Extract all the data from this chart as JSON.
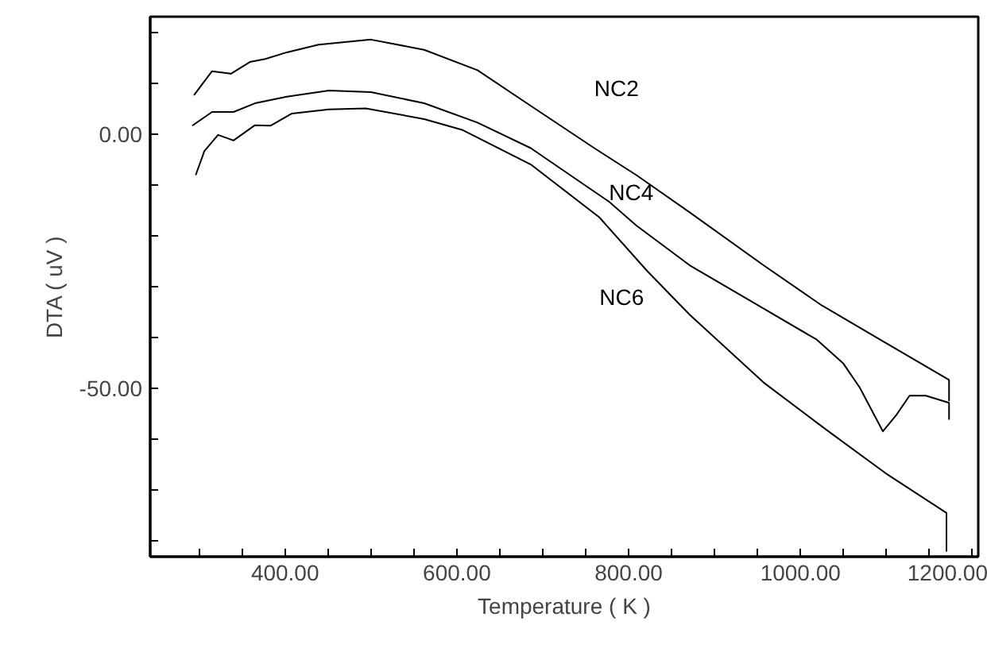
{
  "chart_data": {
    "type": "line",
    "xlabel": "Temperature ( K )",
    "ylabel": "DTA ( uV )",
    "xlim": [
      243,
      1207
    ],
    "ylim": [
      -83,
      23
    ],
    "xticks": [
      {
        "value": 300,
        "label": null
      },
      {
        "value": 350,
        "label": null
      },
      {
        "value": 400,
        "label": "400.00"
      },
      {
        "value": 450,
        "label": null
      },
      {
        "value": 500,
        "label": null
      },
      {
        "value": 550,
        "label": null
      },
      {
        "value": 600,
        "label": "600.00"
      },
      {
        "value": 650,
        "label": null
      },
      {
        "value": 700,
        "label": null
      },
      {
        "value": 750,
        "label": null
      },
      {
        "value": 800,
        "label": "800.00"
      },
      {
        "value": 850,
        "label": null
      },
      {
        "value": 900,
        "label": null
      },
      {
        "value": 950,
        "label": null
      },
      {
        "value": 1000,
        "label": "1000.00"
      },
      {
        "value": 1050,
        "label": null
      },
      {
        "value": 1100,
        "label": null
      },
      {
        "value": 1150,
        "label": null
      },
      {
        "value": 1200,
        "label": "1200.00"
      }
    ],
    "yticks": [
      {
        "value": -80,
        "label": null
      },
      {
        "value": -70,
        "label": null
      },
      {
        "value": -60,
        "label": null
      },
      {
        "value": -50,
        "label": "-50.00"
      },
      {
        "value": -40,
        "label": null
      },
      {
        "value": -30,
        "label": null
      },
      {
        "value": -20,
        "label": null
      },
      {
        "value": -10,
        "label": null
      },
      {
        "value": 0,
        "label": "0.00"
      },
      {
        "value": 10,
        "label": null
      },
      {
        "value": 20,
        "label": null
      }
    ],
    "grid": false,
    "marker": "none",
    "line_style": "solid",
    "series": [
      {
        "name": "NC2",
        "color": "#000000",
        "x": [
          294,
          315,
          337,
          359,
          377,
          402,
          439,
          500,
          562,
          624,
          686,
          760,
          809,
          871,
          957,
          1025,
          1099,
          1173,
          1173
        ],
        "values": [
          7.6,
          12.3,
          11.8,
          14.1,
          14.7,
          16,
          17.5,
          18.5,
          16.5,
          12.5,
          5.5,
          -2.8,
          -8.1,
          -15.4,
          -25.8,
          -33.7,
          -41,
          -48.3,
          -52.5
        ]
      },
      {
        "name": "NC4",
        "color": "#000000",
        "x": [
          292,
          315,
          340,
          365,
          402,
          451,
          500,
          562,
          624,
          686,
          777,
          809,
          871,
          945,
          1019,
          1050,
          1069,
          1096,
          1112,
          1127,
          1146,
          1173,
          1173
        ],
        "values": [
          1.6,
          4.3,
          4.3,
          6,
          7.3,
          8.5,
          8.2,
          6,
          2.2,
          -2.8,
          -13.3,
          -18,
          -25.8,
          -33.1,
          -40.4,
          -45.1,
          -49.8,
          -58.4,
          -55.1,
          -51.4,
          -51.4,
          -52.8,
          -56.1
        ]
      },
      {
        "name": "NC6",
        "color": "#000000",
        "x": [
          296,
          306,
          322,
          340,
          365,
          383,
          408,
          451,
          494,
          562,
          606,
          686,
          766,
          822,
          871,
          957,
          1031,
          1099,
          1170,
          1170
        ],
        "values": [
          -8.1,
          -3.4,
          -0.2,
          -1.3,
          1.7,
          1.6,
          4,
          4.8,
          5,
          2.9,
          0.8,
          -6,
          -16.4,
          -27,
          -35.5,
          -48.8,
          -58.2,
          -66.6,
          -74.4,
          -82
        ]
      }
    ]
  }
}
